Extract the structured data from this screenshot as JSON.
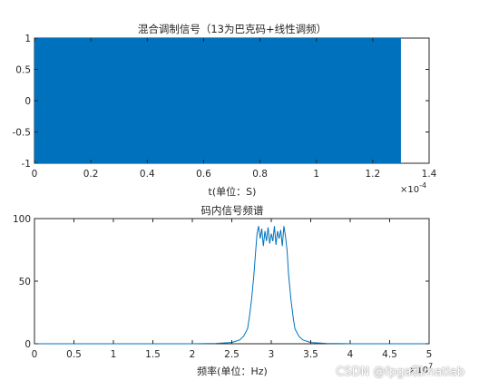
{
  "chart_data": [
    {
      "type": "line",
      "title": "混合调制信号（13为巴克码+线性调频）",
      "xlabel": "t(单位：S)",
      "ylabel": "",
      "x_exponent_label": "×10",
      "x_exponent_power": "-4",
      "xlim": [
        0,
        1.4
      ],
      "ylim": [
        -1,
        1
      ],
      "xticks": [
        "0",
        "0.2",
        "0.4",
        "0.6",
        "0.8",
        "1",
        "1.2",
        "1.4"
      ],
      "yticks": [
        "-1",
        "-0.5",
        "0",
        "0.5",
        "1"
      ],
      "signal_x_end": 1.3,
      "fill_color": "#0072bd",
      "grid": false
    },
    {
      "type": "line",
      "title": "码内信号频谱",
      "xlabel": "频率(单位：Hz)",
      "ylabel": "",
      "x_exponent_label": "×10",
      "x_exponent_power": "7",
      "xlim": [
        0,
        5
      ],
      "ylim": [
        0,
        100
      ],
      "xticks": [
        "0",
        "0.5",
        "1",
        "1.5",
        "2",
        "2.5",
        "3",
        "3.5",
        "4",
        "4.5",
        "5"
      ],
      "yticks": [
        "0",
        "50",
        "100"
      ],
      "series": [
        {
          "x": [
            0.0,
            0.5,
            1.0,
            1.5,
            2.0,
            2.3,
            2.5,
            2.6,
            2.65,
            2.7,
            2.72,
            2.75,
            2.78,
            2.8,
            2.82,
            2.84,
            2.86,
            2.88,
            2.9,
            2.92,
            2.94,
            2.96,
            2.98,
            3.0,
            3.02,
            3.04,
            3.06,
            3.08,
            3.1,
            3.12,
            3.14,
            3.16,
            3.18,
            3.2,
            3.22,
            3.25,
            3.28,
            3.3,
            3.35,
            3.4,
            3.5,
            3.7,
            4.0,
            4.5,
            5.0
          ],
          "y": [
            0,
            0,
            0,
            0,
            0,
            0.3,
            1,
            3,
            6,
            12,
            20,
            35,
            55,
            72,
            88,
            94,
            84,
            92,
            78,
            90,
            82,
            93,
            80,
            88,
            82,
            94,
            79,
            90,
            84,
            91,
            78,
            94,
            86,
            75,
            55,
            35,
            20,
            12,
            6,
            3,
            1,
            0.3,
            0,
            0,
            0
          ]
        }
      ],
      "line_color": "#0072bd",
      "grid": false
    }
  ],
  "watermark": "CSDN @fpga和matlab"
}
